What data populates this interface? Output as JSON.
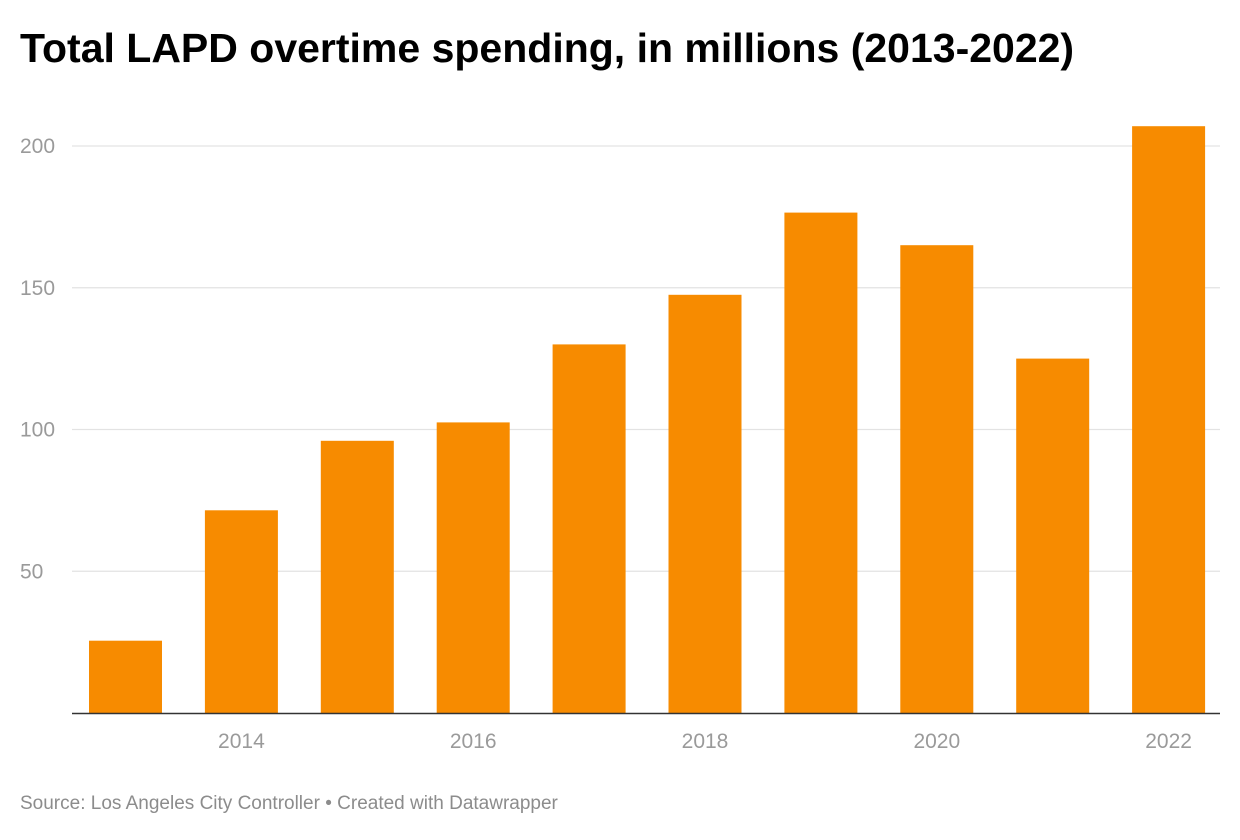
{
  "chart_data": {
    "type": "bar",
    "title": "Total LAPD overtime spending, in millions (2013-2022)",
    "categories": [
      2013,
      2014,
      2015,
      2016,
      2017,
      2018,
      2019,
      2020,
      2021,
      2022
    ],
    "values": [
      25.5,
      71.5,
      96.0,
      102.5,
      130.0,
      147.5,
      176.5,
      165.0,
      125.0,
      207.0
    ],
    "x_tick_labels": [
      "2014",
      "2016",
      "2018",
      "2020",
      "2022"
    ],
    "y_ticks": [
      50,
      100,
      150,
      200
    ],
    "ylim": [
      0,
      210
    ],
    "xlabel": "",
    "ylabel": "",
    "grid": true,
    "bar_color": "#f78b00"
  },
  "footer": {
    "source": "Source: Los Angeles City Controller",
    "separator": " • ",
    "credit": "Created with Datawrapper"
  },
  "colors": {
    "bar": "#f78b00",
    "gridline": "#e3e3e3",
    "baseline": "#333333",
    "tick_text": "#9a9a9a",
    "footer_text": "#8c8c8c"
  }
}
